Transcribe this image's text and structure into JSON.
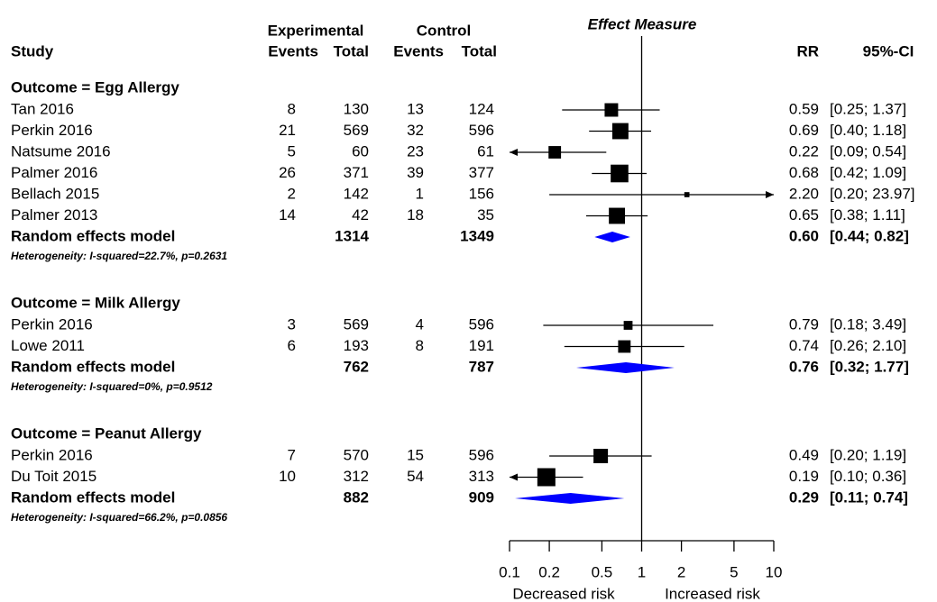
{
  "chart_data": {
    "type": "forest",
    "title": "Effect Measure",
    "columns": {
      "experimental": "Experimental",
      "control": "Control",
      "study": "Study",
      "events": "Events",
      "total": "Total",
      "rr": "RR",
      "ci": "95%-CI"
    },
    "xscale": "log",
    "xlim": [
      0.1,
      10
    ],
    "xticks": [
      0.1,
      0.2,
      0.5,
      1,
      2,
      5,
      10
    ],
    "reference_line": 1,
    "x_labels": [
      "Decreased risk",
      "Increased risk"
    ],
    "square_color": "#000000",
    "diamond_color": "#0000ff",
    "groups": [
      {
        "title": "Outcome = Egg Allergy",
        "studies": [
          {
            "study": "Tan 2016",
            "exp_events": 8,
            "exp_total": 130,
            "ctrl_events": 13,
            "ctrl_total": 124,
            "rr": 0.59,
            "ci": [
              0.25,
              1.37
            ],
            "weight": 14,
            "value_labels": {
              "rr": "0.59",
              "ci": "[0.25; 1.37]"
            }
          },
          {
            "study": "Perkin 2016",
            "exp_events": 21,
            "exp_total": 569,
            "ctrl_events": 32,
            "ctrl_total": 596,
            "rr": 0.69,
            "ci": [
              0.4,
              1.18
            ],
            "weight": 20,
            "value_labels": {
              "rr": "0.69",
              "ci": "[0.40; 1.18]"
            }
          },
          {
            "study": "Natsume 2016",
            "exp_events": 5,
            "exp_total": 60,
            "ctrl_events": 23,
            "ctrl_total": 61,
            "rr": 0.22,
            "ci": [
              0.09,
              0.54
            ],
            "weight": 12,
            "value_labels": {
              "rr": "0.22",
              "ci": "[0.09; 0.54]"
            }
          },
          {
            "study": "Palmer 2016",
            "exp_events": 26,
            "exp_total": 371,
            "ctrl_events": 39,
            "ctrl_total": 377,
            "rr": 0.68,
            "ci": [
              0.42,
              1.09
            ],
            "weight": 24,
            "value_labels": {
              "rr": "0.68",
              "ci": "[0.42; 1.09]"
            }
          },
          {
            "study": "Bellach 2015",
            "exp_events": 2,
            "exp_total": 142,
            "ctrl_events": 1,
            "ctrl_total": 156,
            "rr": 2.2,
            "ci": [
              0.2,
              23.97
            ],
            "weight": 2,
            "value_labels": {
              "rr": "2.20",
              "ci": "[0.20; 23.97]"
            }
          },
          {
            "study": "Palmer 2013",
            "exp_events": 14,
            "exp_total": 42,
            "ctrl_events": 18,
            "ctrl_total": 35,
            "rr": 0.65,
            "ci": [
              0.38,
              1.11
            ],
            "weight": 20,
            "value_labels": {
              "rr": "0.65",
              "ci": "[0.38; 1.11]"
            }
          }
        ],
        "summary": {
          "label": "Random effects model",
          "exp_total": 1314,
          "ctrl_total": 1349,
          "rr": 0.6,
          "ci": [
            0.44,
            0.82
          ],
          "value_labels": {
            "rr": "0.60",
            "ci": "[0.44; 0.82]"
          }
        },
        "heterogeneity": "Heterogeneity: I-squared=22.7%, p=0.2631"
      },
      {
        "title": "Outcome = Milk Allergy",
        "studies": [
          {
            "study": "Perkin 2016",
            "exp_events": 3,
            "exp_total": 569,
            "ctrl_events": 4,
            "ctrl_total": 596,
            "rr": 0.79,
            "ci": [
              0.18,
              3.49
            ],
            "weight": 6,
            "value_labels": {
              "rr": "0.79",
              "ci": "[0.18; 3.49]"
            }
          },
          {
            "study": "Lowe 2011",
            "exp_events": 6,
            "exp_total": 193,
            "ctrl_events": 8,
            "ctrl_total": 191,
            "rr": 0.74,
            "ci": [
              0.26,
              2.1
            ],
            "weight": 12,
            "value_labels": {
              "rr": "0.74",
              "ci": "[0.26; 2.10]"
            }
          }
        ],
        "summary": {
          "label": "Random effects model",
          "exp_total": 762,
          "ctrl_total": 787,
          "rr": 0.76,
          "ci": [
            0.32,
            1.77
          ],
          "value_labels": {
            "rr": "0.76",
            "ci": "[0.32; 1.77]"
          }
        },
        "heterogeneity": "Heterogeneity: I-squared=0%, p=0.9512"
      },
      {
        "title": "Outcome = Peanut Allergy",
        "studies": [
          {
            "study": "Perkin 2016",
            "exp_events": 7,
            "exp_total": 570,
            "ctrl_events": 15,
            "ctrl_total": 596,
            "rr": 0.49,
            "ci": [
              0.2,
              1.19
            ],
            "weight": 16,
            "value_labels": {
              "rr": "0.49",
              "ci": "[0.20; 1.19]"
            }
          },
          {
            "study": "Du Toit 2015",
            "exp_events": 10,
            "exp_total": 312,
            "ctrl_events": 54,
            "ctrl_total": 313,
            "rr": 0.19,
            "ci": [
              0.1,
              0.36
            ],
            "weight": 25,
            "value_labels": {
              "rr": "0.19",
              "ci": "[0.10; 0.36]"
            }
          }
        ],
        "summary": {
          "label": "Random effects model",
          "exp_total": 882,
          "ctrl_total": 909,
          "rr": 0.29,
          "ci": [
            0.11,
            0.74
          ],
          "value_labels": {
            "rr": "0.29",
            "ci": "[0.11; 0.74]"
          }
        },
        "heterogeneity": "Heterogeneity: I-squared=66.2%, p=0.0856"
      }
    ]
  }
}
